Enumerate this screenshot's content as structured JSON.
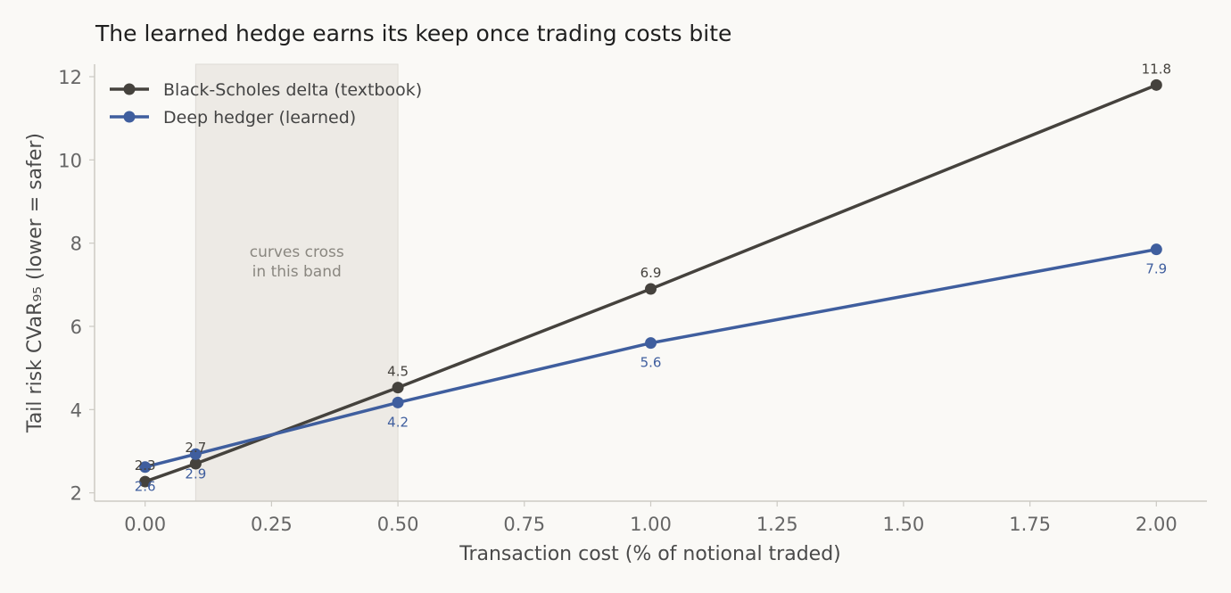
{
  "chart_data": {
    "type": "line",
    "title": "The learned hedge earns its keep once trading costs bite",
    "xlabel": "Transaction cost (% of notional traded)",
    "ylabel": "Tail risk  CVaR₉₅  (lower = safer)",
    "x": [
      0.0,
      0.1,
      0.5,
      1.0,
      2.0
    ],
    "xlim": [
      -0.1,
      2.1
    ],
    "ylim": [
      1.8,
      12.3
    ],
    "xticks": [
      0.0,
      0.25,
      0.5,
      0.75,
      1.0,
      1.25,
      1.5,
      1.75,
      2.0
    ],
    "xtick_labels": [
      "0.00",
      "0.25",
      "0.50",
      "0.75",
      "1.00",
      "1.25",
      "1.50",
      "1.75",
      "2.00"
    ],
    "yticks": [
      2,
      4,
      6,
      8,
      10,
      12
    ],
    "ytick_labels": [
      "2",
      "4",
      "6",
      "8",
      "10",
      "12"
    ],
    "grid": false,
    "legend_position": "top-left",
    "series": [
      {
        "name": "Black-Scholes delta (textbook)",
        "color": "#45423d",
        "values": [
          2.27,
          2.7,
          4.53,
          6.9,
          11.8
        ],
        "data_labels": [
          "2.3",
          "2.7",
          "4.5",
          "6.9",
          "11.8"
        ],
        "label_position": "above"
      },
      {
        "name": "Deep hedger (learned)",
        "color": "#3f5e9e",
        "values": [
          2.62,
          2.93,
          4.17,
          5.6,
          7.85
        ],
        "data_labels": [
          "2.6",
          "2.9",
          "4.2",
          "5.6",
          "7.9"
        ],
        "label_position": "below"
      }
    ],
    "shaded_band": {
      "x_range": [
        0.1,
        0.5
      ],
      "color": "#edeae5",
      "annotation": [
        "curves cross",
        "in this band"
      ]
    }
  }
}
